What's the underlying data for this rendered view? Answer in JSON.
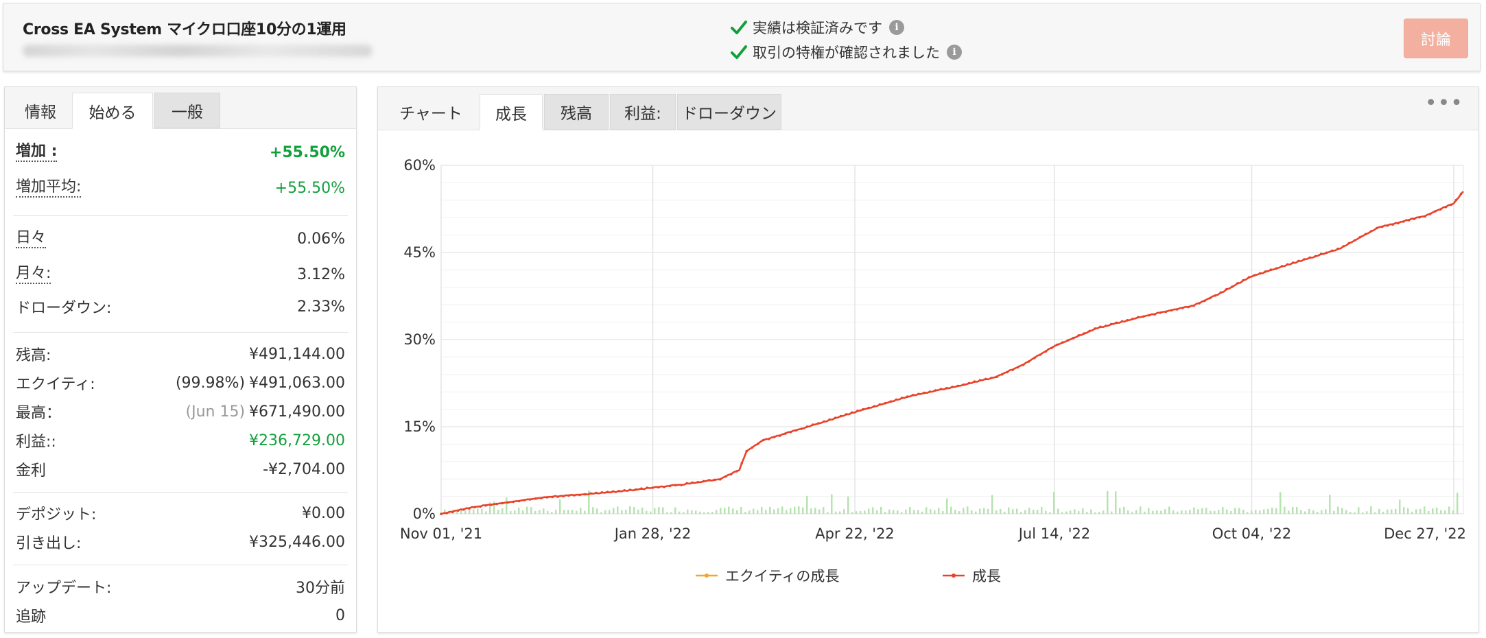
{
  "header": {
    "title": "Cross EA System マイクロ口座10分の1運用",
    "verified_1": "実績は検証済みです",
    "verified_2": "取引の特権が確認されました",
    "discuss_button": "討論",
    "colors": {
      "check": "#12a03b",
      "discuss_bg": "#f3b0a0"
    }
  },
  "left_tabs": [
    "情報",
    "始める",
    "一般"
  ],
  "stats": {
    "gain": {
      "label": "増加 :",
      "value": "+55.50%"
    },
    "abs_gain": {
      "label": "増加平均:",
      "value": "+55.50%"
    },
    "daily": {
      "label": "日々",
      "value": "0.06%"
    },
    "monthly": {
      "label": "月々:",
      "value": "3.12%"
    },
    "drawdown": {
      "label": "ドローダウン:",
      "value": "2.33%"
    },
    "balance": {
      "label": "残高:",
      "value": "¥491,144.00"
    },
    "equity": {
      "label": "エクイティ:",
      "prefix": "(99.98%)",
      "value": "¥491,063.00"
    },
    "highest": {
      "label": "最高：",
      "prefix": "(Jun 15)",
      "value": "¥671,490.00"
    },
    "profit": {
      "label": "利益::",
      "value": "¥236,729.00"
    },
    "interest": {
      "label": "金利",
      "value": "-¥2,704.00"
    },
    "deposits": {
      "label": "デポジット:",
      "value": "¥0.00"
    },
    "withdrawals": {
      "label": "引き出し:",
      "value": "¥325,446.00"
    },
    "updated": {
      "label": "アップデート:",
      "value": "30分前"
    },
    "tracking": {
      "label": "追跡",
      "value": "0"
    }
  },
  "right_tabs": [
    "チャート",
    "成長",
    "残高",
    "利益:",
    "ドローダウン"
  ],
  "active_right_tab": "成長",
  "more_icon": "more-horizontal-icon",
  "chart_data": {
    "type": "line",
    "xlabel": "",
    "ylabel": "",
    "x_ticks": [
      "Nov 01, '21",
      "Jan 28, '22",
      "Apr 22, '22",
      "Jul 14, '22",
      "Oct 04, '22",
      "Dec 27, '22"
    ],
    "y_ticks": [
      "0%",
      "15%",
      "30%",
      "45%",
      "60%"
    ],
    "ylim": [
      0,
      60
    ],
    "legend_position": "bottom",
    "series": [
      {
        "name": "エクイティの成長",
        "color": "#f5a623",
        "values": []
      },
      {
        "name": "成長",
        "color": "#e8432a",
        "dates": [
          "2021-11-01",
          "2021-11-15",
          "2021-12-01",
          "2021-12-15",
          "2022-01-01",
          "2022-01-15",
          "2022-01-28",
          "2022-02-10",
          "2022-02-25",
          "2022-03-05",
          "2022-03-08",
          "2022-03-15",
          "2022-04-01",
          "2022-04-22",
          "2022-05-15",
          "2022-06-05",
          "2022-06-20",
          "2022-07-01",
          "2022-07-14",
          "2022-08-01",
          "2022-08-20",
          "2022-09-10",
          "2022-09-20",
          "2022-10-04",
          "2022-10-20",
          "2022-11-10",
          "2022-11-25",
          "2022-12-15",
          "2022-12-27",
          "2022-12-31"
        ],
        "values": [
          0.0,
          1.2,
          2.1,
          2.9,
          3.4,
          3.9,
          4.5,
          5.1,
          6.0,
          7.6,
          10.8,
          12.7,
          14.8,
          17.5,
          20.3,
          22.1,
          23.6,
          25.7,
          28.9,
          32.0,
          34.0,
          35.9,
          37.8,
          40.9,
          43.0,
          45.7,
          49.2,
          51.3,
          53.5,
          55.5
        ]
      }
    ],
    "volume_bars_note": "daily trade volume bars (light green) along the x-axis"
  }
}
